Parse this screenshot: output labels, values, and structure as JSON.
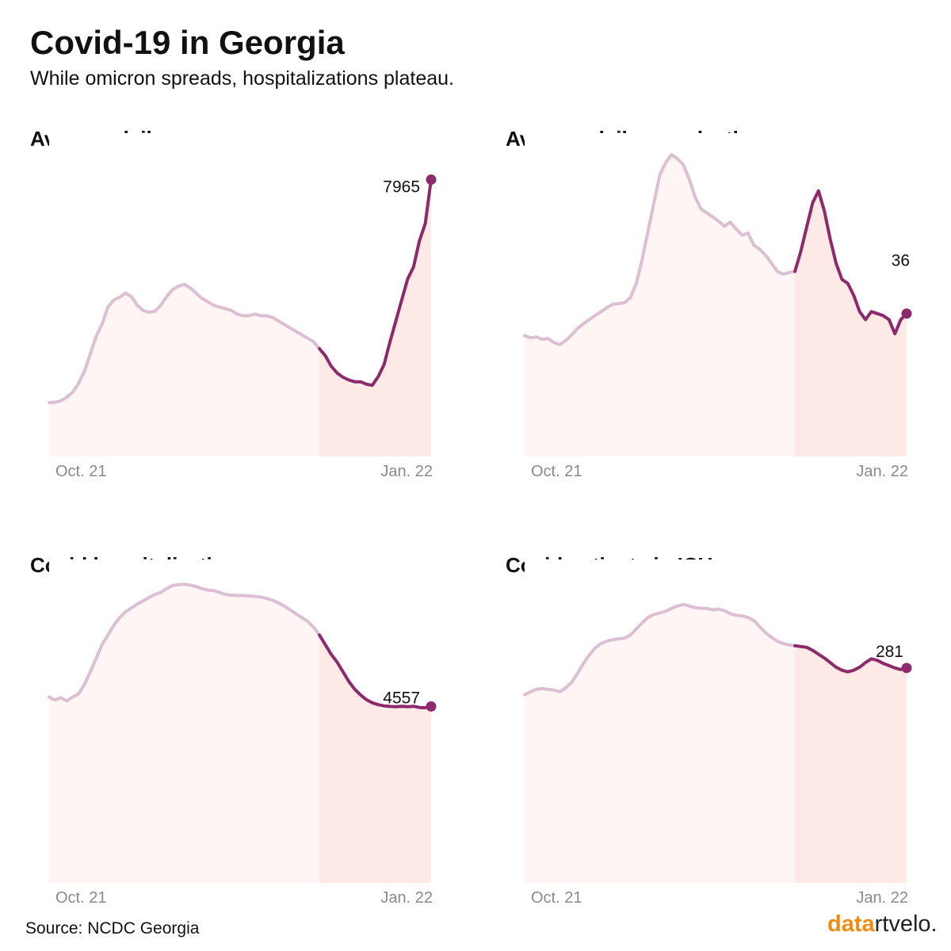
{
  "header": {
    "title": "Covid-19 in Georgia",
    "subtitle": "While omicron spreads, hospitalizations plateau."
  },
  "footer": {
    "source": "Source: NCDC Georgia",
    "brand_part1": "data",
    "brand_part2": "rtvelo."
  },
  "colors": {
    "history_line": "#dcbfd3",
    "recent_line": "#8c2a6c",
    "history_fill": "#fff5f5",
    "recent_fill": "#fde9e6"
  },
  "chart_data": [
    {
      "type": "area",
      "title": "Average daily new cases",
      "x_tick_labels": [
        "Oct. 21",
        "Jan. 22"
      ],
      "last_label": "7965",
      "ylim": [
        0,
        8800
      ],
      "highlight_from": 0.71,
      "values": [
        1550,
        1560,
        1600,
        1700,
        1850,
        2100,
        2450,
        2950,
        3450,
        3800,
        4300,
        4500,
        4580,
        4700,
        4600,
        4350,
        4200,
        4150,
        4180,
        4350,
        4600,
        4800,
        4900,
        4950,
        4850,
        4700,
        4550,
        4450,
        4350,
        4300,
        4250,
        4200,
        4100,
        4050,
        4050,
        4100,
        4050,
        4050,
        4000,
        3900,
        3800,
        3700,
        3600,
        3500,
        3400,
        3300,
        3100,
        2900,
        2600,
        2400,
        2280,
        2200,
        2150,
        2150,
        2080,
        2050,
        2300,
        2650,
        3300,
        3900,
        4500,
        5100,
        5450,
        6200,
        6700,
        7965
      ]
    },
    {
      "type": "area",
      "title": "Average daily new deaths",
      "x_tick_labels": [
        "Oct. 21",
        "Jan. 22"
      ],
      "last_label": "36",
      "ylim": [
        0,
        76
      ],
      "highlight_from": 0.71,
      "values": [
        30,
        29.5,
        29.7,
        29.1,
        29.3,
        28.3,
        27.8,
        28.8,
        30.2,
        31.8,
        33.0,
        34.0,
        35.0,
        36.0,
        37.0,
        37.8,
        38.0,
        38.2,
        39.5,
        43.0,
        49.0,
        56.0,
        63.0,
        70.0,
        73.0,
        75.0,
        74.0,
        72.5,
        69.0,
        64.5,
        61.5,
        60.5,
        59.5,
        58.5,
        57.2,
        58.2,
        56.5,
        55.0,
        55.5,
        52.5,
        51.5,
        50.0,
        48.0,
        46.0,
        45.3,
        45.7,
        46.0,
        51.0,
        57.0,
        63.0,
        66.0,
        61.0,
        54.0,
        48.0,
        44.0,
        43.0,
        40.0,
        36.0,
        34.0,
        36.0,
        35.5,
        35.0,
        34.0,
        30.5,
        34.0,
        35.5
      ]
    },
    {
      "type": "area",
      "title": "Covid hospitalizations",
      "x_tick_labels": [
        "Oct. 21",
        "Jan. 22"
      ],
      "last_label": "4557",
      "ylim": [
        0,
        7900
      ],
      "highlight_from": 0.71,
      "values": [
        4800,
        4720,
        4780,
        4700,
        4800,
        4880,
        5120,
        5450,
        5800,
        6150,
        6400,
        6650,
        6850,
        7000,
        7100,
        7200,
        7280,
        7370,
        7450,
        7500,
        7600,
        7680,
        7700,
        7710,
        7690,
        7650,
        7600,
        7560,
        7550,
        7500,
        7450,
        7430,
        7420,
        7420,
        7410,
        7400,
        7380,
        7350,
        7300,
        7230,
        7150,
        7050,
        6950,
        6850,
        6750,
        6600,
        6400,
        6150,
        5900,
        5700,
        5450,
        5200,
        5000,
        4850,
        4730,
        4650,
        4600,
        4570,
        4555,
        4550,
        4560,
        4550,
        4560,
        4530,
        4520,
        4557
      ]
    },
    {
      "type": "area",
      "title": "Covid patients in ICU",
      "x_tick_labels": [
        "Oct. 21",
        "Jan. 22"
      ],
      "last_label": "281",
      "ylim": [
        0,
        400
      ],
      "highlight_from": 0.71,
      "values": [
        246,
        250,
        253,
        254,
        253,
        252,
        250,
        255,
        262,
        274,
        287,
        298,
        307,
        313,
        316,
        318,
        319,
        320,
        324,
        332,
        340,
        347,
        351,
        353,
        355,
        359,
        362,
        364,
        362,
        360,
        359,
        359,
        357,
        358,
        356,
        352,
        350,
        349,
        347,
        343,
        335,
        327,
        321,
        316,
        313,
        311,
        310,
        309,
        308,
        304,
        299,
        294,
        288,
        282,
        278,
        276,
        278,
        282,
        288,
        293,
        291,
        287,
        284,
        281,
        279,
        281
      ]
    }
  ]
}
